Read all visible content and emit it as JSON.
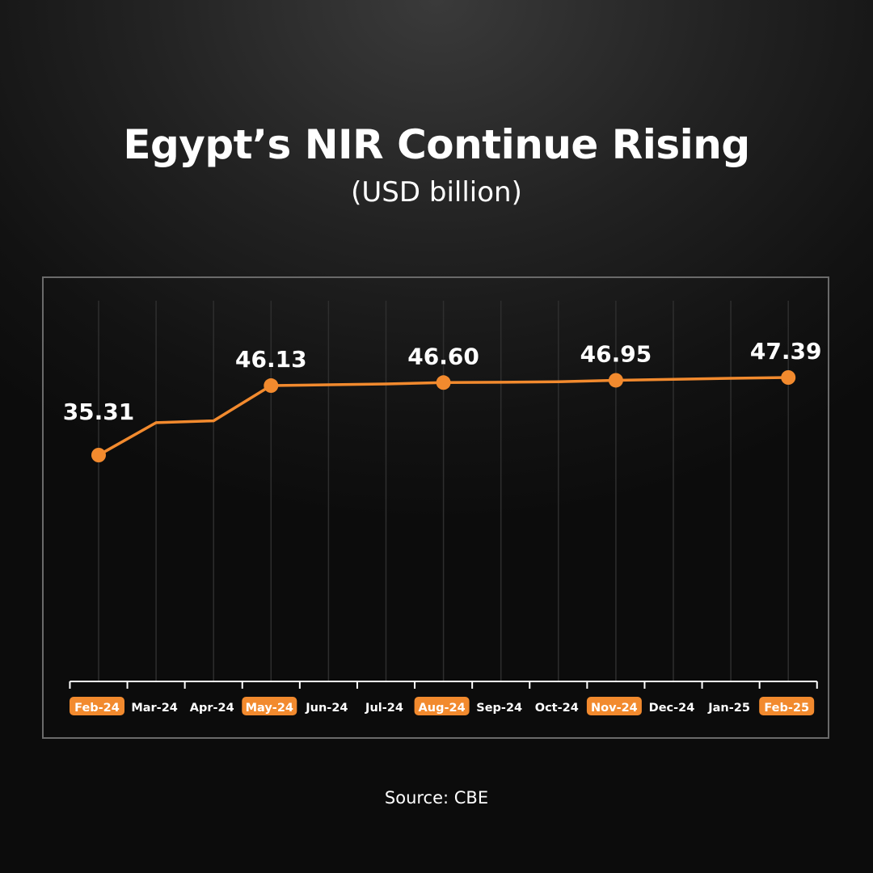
{
  "title": "Egypt’s NIR Continue Rising",
  "subtitle": "(USD billion)",
  "source": "Source: CBE",
  "colors": {
    "accent": "#f28a2e",
    "text": "#ffffff",
    "grid": "#2e2e2e",
    "frame": "#6a6a6a"
  },
  "chart_data": {
    "type": "line",
    "title": "Egypt’s NIR Continue Rising",
    "subtitle": "(USD billion)",
    "categories": [
      "Feb-24",
      "Mar-24",
      "Apr-24",
      "May-24",
      "Jun-24",
      "Jul-24",
      "Aug-24",
      "Sep-24",
      "Oct-24",
      "Nov-24",
      "Dec-24",
      "Jan-25",
      "Feb-25"
    ],
    "values": [
      35.31,
      40.36,
      40.65,
      46.13,
      46.26,
      46.38,
      46.6,
      46.65,
      46.73,
      46.95,
      47.11,
      47.26,
      47.39
    ],
    "labeled_points": [
      {
        "category": "Feb-24",
        "label": "35.31"
      },
      {
        "category": "May-24",
        "label": "46.13"
      },
      {
        "category": "Aug-24",
        "label": "46.60"
      },
      {
        "category": "Nov-24",
        "label": "46.95"
      },
      {
        "category": "Feb-25",
        "label": "47.39"
      }
    ],
    "highlighted_categories": [
      "Feb-24",
      "May-24",
      "Aug-24",
      "Nov-24",
      "Feb-25"
    ],
    "series_color": "#f28a2e",
    "grid": "vertical",
    "ylim": [
      0,
      50
    ]
  }
}
